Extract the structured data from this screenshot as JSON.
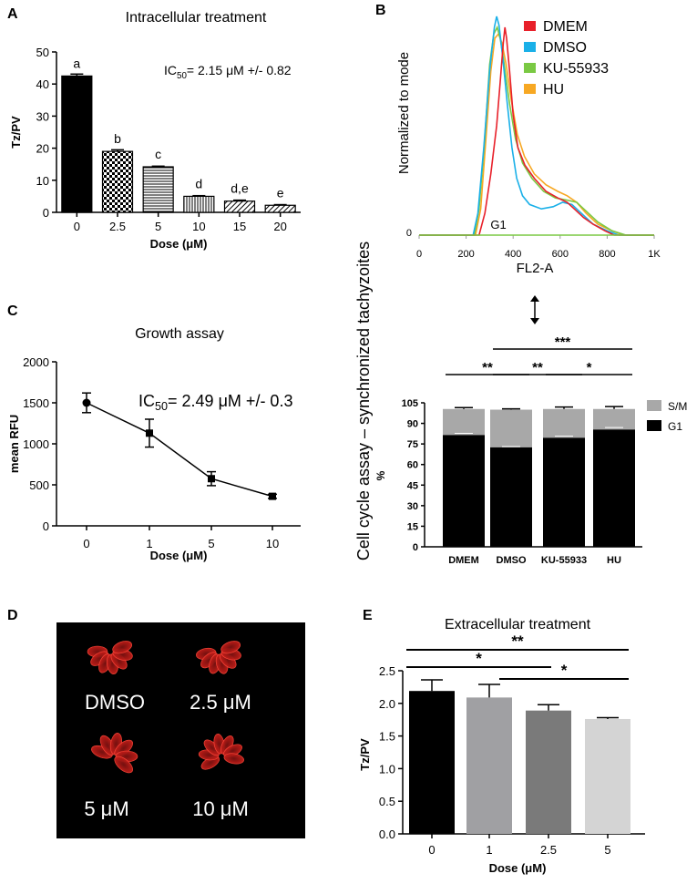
{
  "colors": {
    "dmem": "#e8202a",
    "dmso": "#1ab0e8",
    "ku": "#7ac943",
    "hu": "#f7a823",
    "gray": "#a8a8a8",
    "black": "#000000",
    "cell_red": "#d9231f"
  },
  "panel_letters": [
    "A",
    "B",
    "C",
    "D",
    "E"
  ],
  "chart_data": [
    {
      "panel": "A",
      "type": "bar",
      "title": "Intracellular  treatment",
      "xlabel": "Dose (μM)",
      "ylabel": "Tz/PV",
      "categories": [
        "0",
        "2.5",
        "5",
        "10",
        "15",
        "20"
      ],
      "values": [
        42.5,
        19,
        14.2,
        5,
        3.5,
        2.2
      ],
      "errors": [
        0.6,
        0.5,
        0.2,
        0.2,
        0.3,
        0.2
      ],
      "letters": [
        "a",
        "b",
        "c",
        "d",
        "d,e",
        "e"
      ],
      "patterns": [
        "solid",
        "checker",
        "hlines",
        "vlines",
        "diag",
        "diag"
      ],
      "yticks": [
        "0",
        "10",
        "20",
        "30",
        "40",
        "50"
      ],
      "ylim": [
        0,
        50
      ],
      "annotation": {
        "prefix": "IC",
        "sub": "50",
        "suffix": "= 2.15 μM +/- 0.82"
      }
    },
    {
      "panel": "B",
      "type": "line",
      "ylabel": "Normalized to mode",
      "xlabel": "FL2-A",
      "xticks": [
        "0",
        "200",
        "400",
        "600",
        "800",
        "1K"
      ],
      "xlim": [
        0,
        1000
      ],
      "y_zero_label": "0",
      "gate_label": "G1",
      "series": [
        {
          "name": "DMEM",
          "color_key": "dmem",
          "points": [
            [
              0,
              0
            ],
            [
              255,
              0
            ],
            [
              280,
              10
            ],
            [
              305,
              28
            ],
            [
              330,
              50
            ],
            [
              345,
              70
            ],
            [
              358,
              88
            ],
            [
              365,
              95
            ],
            [
              372,
              90
            ],
            [
              385,
              75
            ],
            [
              400,
              55
            ],
            [
              420,
              40
            ],
            [
              450,
              32
            ],
            [
              490,
              26
            ],
            [
              540,
              20
            ],
            [
              590,
              17
            ],
            [
              630,
              15
            ],
            [
              660,
              12
            ],
            [
              700,
              8
            ],
            [
              740,
              5
            ],
            [
              790,
              2
            ],
            [
              830,
              0
            ],
            [
              1000,
              0
            ]
          ]
        },
        {
          "name": "DMSO",
          "color_key": "dmso",
          "points": [
            [
              0,
              0
            ],
            [
              230,
              0
            ],
            [
              250,
              10
            ],
            [
              275,
              40
            ],
            [
              300,
              75
            ],
            [
              320,
              95
            ],
            [
              330,
              100
            ],
            [
              340,
              96
            ],
            [
              355,
              82
            ],
            [
              375,
              60
            ],
            [
              395,
              40
            ],
            [
              415,
              26
            ],
            [
              440,
              18
            ],
            [
              470,
              14
            ],
            [
              520,
              12
            ],
            [
              570,
              13
            ],
            [
              610,
              15
            ],
            [
              650,
              14
            ],
            [
              690,
              10
            ],
            [
              740,
              5
            ],
            [
              800,
              2
            ],
            [
              850,
              0
            ],
            [
              1000,
              0
            ]
          ]
        },
        {
          "name": "KU-55933",
          "color_key": "ku",
          "points": [
            [
              0,
              0
            ],
            [
              235,
              0
            ],
            [
              255,
              12
            ],
            [
              280,
              45
            ],
            [
              300,
              78
            ],
            [
              318,
              92
            ],
            [
              332,
              95
            ],
            [
              345,
              90
            ],
            [
              362,
              78
            ],
            [
              385,
              60
            ],
            [
              410,
              44
            ],
            [
              440,
              33
            ],
            [
              480,
              26
            ],
            [
              530,
              20
            ],
            [
              580,
              17
            ],
            [
              630,
              16
            ],
            [
              670,
              15
            ],
            [
              710,
              11
            ],
            [
              760,
              6
            ],
            [
              820,
              2
            ],
            [
              880,
              0
            ],
            [
              1000,
              0
            ]
          ]
        },
        {
          "name": "HU",
          "color_key": "hu",
          "points": [
            [
              0,
              0
            ],
            [
              240,
              0
            ],
            [
              262,
              12
            ],
            [
              285,
              45
            ],
            [
              305,
              75
            ],
            [
              322,
              90
            ],
            [
              338,
              92
            ],
            [
              352,
              88
            ],
            [
              370,
              78
            ],
            [
              392,
              62
            ],
            [
              418,
              46
            ],
            [
              448,
              36
            ],
            [
              490,
              28
            ],
            [
              540,
              23
            ],
            [
              590,
              20
            ],
            [
              630,
              18
            ],
            [
              670,
              15
            ],
            [
              710,
              10
            ],
            [
              760,
              5
            ],
            [
              820,
              2
            ],
            [
              870,
              0
            ],
            [
              1000,
              0
            ]
          ]
        }
      ]
    },
    {
      "panel": "C",
      "type": "line",
      "title": "Growth assay",
      "xlabel": "Dose (μM)",
      "ylabel": "mean RFU",
      "categories": [
        "0",
        "1",
        "5",
        "10"
      ],
      "values": [
        1500,
        1130,
        575,
        360
      ],
      "errors": [
        120,
        170,
        85,
        25
      ],
      "yticks": [
        "0",
        "500",
        "1000",
        "1500",
        "2000"
      ],
      "ylim": [
        0,
        2000
      ],
      "annotation": {
        "prefix": "IC",
        "sub": "50",
        "suffix": "= 2.49 μM +/- 0.3"
      }
    },
    {
      "panel": "B-bottom",
      "type": "bar",
      "title": "Cell cycle assay – synchronized tachyzoites",
      "ylabel": "%",
      "categories": [
        "DMEM",
        "DMSO",
        "KU-55933",
        "HU"
      ],
      "series": [
        {
          "name": "G1",
          "color_key": "black",
          "values": [
            81.5,
            72.5,
            79.5,
            85.5
          ],
          "errors": [
            1.2,
            0.6,
            1.2,
            1.5
          ]
        },
        {
          "name": "S/M",
          "color_key": "gray",
          "values": [
            19,
            27.5,
            21,
            15
          ],
          "errors": [
            1.0,
            0.6,
            1.4,
            1.8
          ]
        }
      ],
      "yticks": [
        "0",
        "15",
        "30",
        "45",
        "60",
        "75",
        "90",
        "105"
      ],
      "ylim": [
        0,
        105
      ],
      "legend": [
        "S/M",
        "G1"
      ],
      "significance": [
        {
          "from": 0,
          "to": 1,
          "label": "**",
          "level": 0
        },
        {
          "from": 1,
          "to": 2,
          "label": "**",
          "level": 0
        },
        {
          "from": 2,
          "to": 3,
          "label": "*",
          "level": 0
        },
        {
          "from": 1,
          "to": 3,
          "label": "***",
          "level": 1
        }
      ]
    },
    {
      "panel": "E",
      "type": "bar",
      "title": "Extracellular treatment",
      "xlabel": "Dose (μM)",
      "ylabel": "Tz/PV",
      "categories": [
        "0",
        "1",
        "2.5",
        "5"
      ],
      "values": [
        2.19,
        2.09,
        1.89,
        1.76
      ],
      "errors": [
        0.17,
        0.2,
        0.09,
        0.02
      ],
      "bar_colors": [
        "#000000",
        "#a0a0a3",
        "#7a7a7a",
        "#d4d4d4"
      ],
      "yticks": [
        "0.0",
        "0.5",
        "1.0",
        "1.5",
        "2.0",
        "2.5"
      ],
      "ylim": [
        0,
        2.5
      ],
      "significance": [
        {
          "from": 0,
          "to": 3,
          "label": "**",
          "level": 2
        },
        {
          "from": 0,
          "to": 2,
          "label": "*",
          "level": 1
        },
        {
          "from": 1,
          "to": 3,
          "label": "*",
          "level": 0
        }
      ]
    }
  ],
  "micrograph": {
    "labels": [
      "DMSO",
      "2.5 μM",
      "5 μM",
      "10 μM"
    ]
  }
}
